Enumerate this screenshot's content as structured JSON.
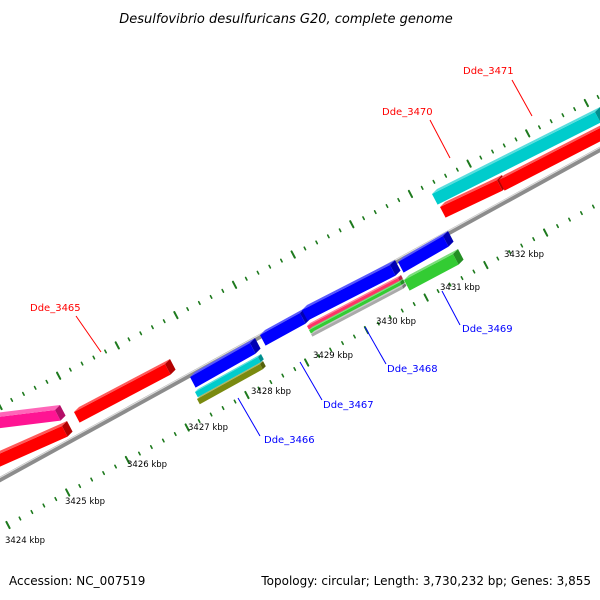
{
  "title": "Desulfovibrio desulfuricans G20, complete genome",
  "accession": "Accession: NC_007519",
  "summary": "Topology: circular; Length: 3,730,232 bp; Genes: 3,855",
  "colors": {
    "label_red": "#ff0000",
    "label_blue": "#0000ff",
    "backbone": "#8c8c8c",
    "tick": "#1e7a1e"
  },
  "kbp_labels": [
    "3424 kbp",
    "3425 kbp",
    "3426 kbp",
    "3427 kbp",
    "3428 kbp",
    "3429 kbp",
    "3430 kbp",
    "3431 kbp",
    "3432 kbp"
  ],
  "gene_labels": [
    {
      "text": "Dde_3471",
      "color": "#ff0000"
    },
    {
      "text": "Dde_3470",
      "color": "#ff0000"
    },
    {
      "text": "Dde_3465",
      "color": "#ff0000"
    },
    {
      "text": "Dde_3466",
      "color": "#0000ff"
    },
    {
      "text": "Dde_3467",
      "color": "#0000ff"
    },
    {
      "text": "Dde_3468",
      "color": "#0000ff"
    },
    {
      "text": "Dde_3469",
      "color": "#0000ff"
    }
  ],
  "features": [
    {
      "track": "upper-outer",
      "color": "#ff1493"
    },
    {
      "track": "upper-inner",
      "color": "#ff0000"
    },
    {
      "track": "upper-inner",
      "color": "#ff0000"
    },
    {
      "track": "upper-outer",
      "color": "#ff0000"
    },
    {
      "track": "upper-outer",
      "color": "#00cccc"
    },
    {
      "track": "upper-inner",
      "color": "#ff0000"
    },
    {
      "track": "upper-inner",
      "color": "#ff0000"
    },
    {
      "track": "lower-outer",
      "color": "#0000ff"
    },
    {
      "track": "lower-outer",
      "color": "#0000ff"
    },
    {
      "track": "lower-outer",
      "color": "#0000ff"
    },
    {
      "track": "lower-outer",
      "color": "#0000ff"
    },
    {
      "track": "lower-inner",
      "color": "#00cccc"
    },
    {
      "track": "lower-inner",
      "color": "#7a8a10"
    },
    {
      "track": "lower-inner",
      "color": "#ff3366"
    },
    {
      "track": "lower-inner",
      "color": "#33cc33"
    },
    {
      "track": "lower-inner",
      "color": "#aaaaaa"
    },
    {
      "track": "lower-inner",
      "color": "#33cc33"
    }
  ]
}
